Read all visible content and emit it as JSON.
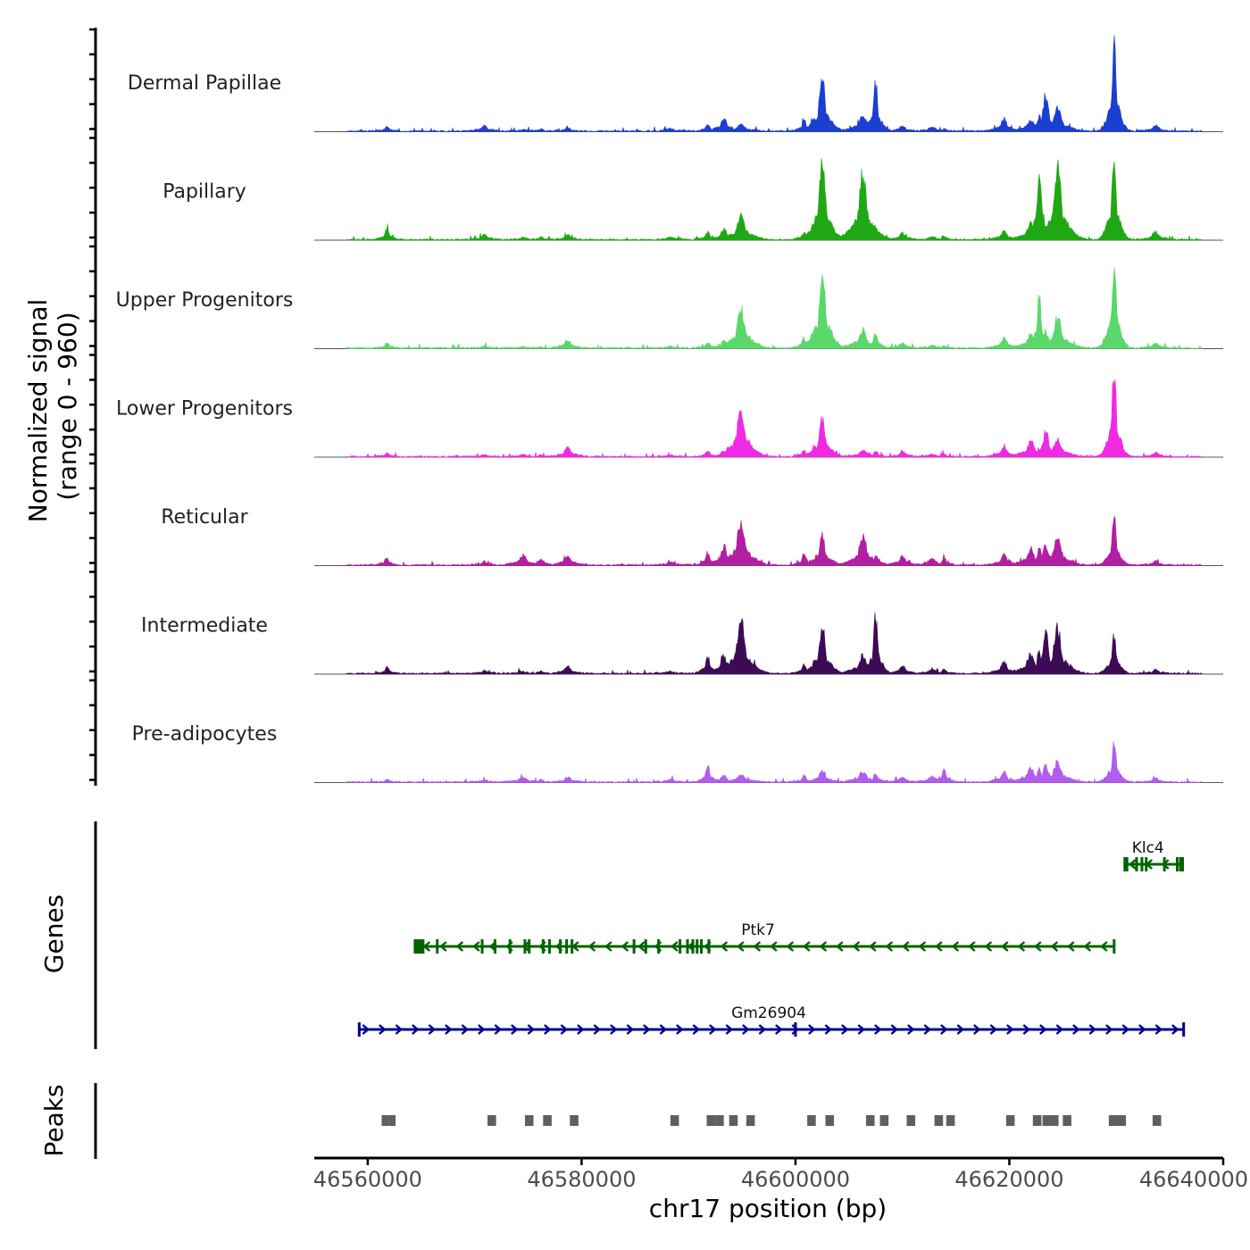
{
  "chart_data": {
    "type": "area",
    "title": "",
    "chromosome": "chr17",
    "xlabel": "chr17 position (bp)",
    "ylabel": "Normalized signal",
    "ylabel_range": "(range 0 - 960)",
    "ylim": [
      0,
      960
    ],
    "xlim": [
      46555000,
      46640000
    ],
    "view_range": [
      46558000,
      46638000
    ],
    "x_ticks": [
      46560000,
      46580000,
      46600000,
      46620000,
      46640000
    ],
    "x_tick_labels": [
      "46560000",
      "46580000",
      "46600000",
      "46620000",
      "46640000"
    ],
    "peak_centers": [
      46561800,
      46570900,
      46574500,
      46576200,
      46578700,
      46588300,
      46591800,
      46593300,
      46594900,
      46600800,
      46602500,
      46606300,
      46607500,
      46610000,
      46612800,
      46613900,
      46619500,
      46622000,
      46622800,
      46623400,
      46624500,
      46629800,
      46633700
    ],
    "series": [
      {
        "name": "Dermal Papillae",
        "color": "#1a3fd1",
        "values": [
          45,
          60,
          15,
          18,
          30,
          25,
          75,
          145,
          70,
          115,
          560,
          180,
          500,
          50,
          40,
          20,
          130,
          110,
          160,
          380,
          250,
          910,
          60
        ]
      },
      {
        "name": "Papillary",
        "color": "#20a814",
        "values": [
          120,
          50,
          20,
          28,
          45,
          22,
          80,
          110,
          250,
          80,
          900,
          720,
          60,
          70,
          30,
          30,
          90,
          170,
          770,
          120,
          750,
          960,
          80
        ]
      },
      {
        "name": "Upper Progenitors",
        "color": "#5ad86a",
        "values": [
          60,
          20,
          15,
          15,
          90,
          15,
          55,
          70,
          420,
          110,
          860,
          200,
          160,
          50,
          25,
          25,
          110,
          150,
          540,
          170,
          310,
          960,
          50
        ]
      },
      {
        "name": "Lower Progenitors",
        "color": "#f02ae2",
        "values": [
          35,
          20,
          15,
          15,
          100,
          15,
          60,
          60,
          500,
          60,
          390,
          60,
          60,
          50,
          20,
          20,
          110,
          160,
          90,
          270,
          180,
          960,
          40
        ]
      },
      {
        "name": "Reticular",
        "color": "#b21fa2",
        "values": [
          70,
          30,
          100,
          60,
          110,
          30,
          130,
          200,
          480,
          110,
          300,
          300,
          100,
          100,
          60,
          70,
          110,
          170,
          180,
          210,
          290,
          500,
          40
        ]
      },
      {
        "name": "Intermediate",
        "color": "#3d0a55",
        "values": [
          60,
          30,
          20,
          25,
          80,
          20,
          180,
          190,
          610,
          95,
          510,
          190,
          600,
          80,
          40,
          40,
          130,
          210,
          250,
          420,
          480,
          410,
          40
        ]
      },
      {
        "name": "Pre-adipocytes",
        "color": "#b25cf0",
        "values": [
          25,
          20,
          45,
          25,
          55,
          25,
          170,
          70,
          80,
          60,
          120,
          110,
          90,
          50,
          60,
          130,
          100,
          140,
          160,
          180,
          210,
          420,
          40
        ]
      }
    ],
    "genes_track": {
      "title": "Genes",
      "genes": [
        {
          "name": "Klc4",
          "color": "#006400",
          "start": 46630800,
          "end": 46636300,
          "strand": "-",
          "exons": [
            46630800,
            46631000,
            46631900,
            46632400,
            46632800,
            46634500,
            46635700,
            46636000,
            46636200
          ],
          "row": 1
        },
        {
          "name": "Ptk7",
          "color": "#006400",
          "start": 46564800,
          "end": 46629800,
          "strand": "-",
          "exons": [
            46564800,
            46566500,
            46570700,
            46571900,
            46573300,
            46574700,
            46575100,
            46576400,
            46577000,
            46578000,
            46578600,
            46579100,
            46584900,
            46586000,
            46587200,
            46589200,
            46589900,
            46590400,
            46590800,
            46591200,
            46591900,
            46629800
          ],
          "row": 2
        },
        {
          "name": "Gm26904",
          "color": "#00008b",
          "start": 46559200,
          "end": 46636300,
          "strand": "+",
          "exons": [
            46559200,
            46600000,
            46636300
          ],
          "row": 3
        }
      ]
    },
    "peaks_track": {
      "title": "Peaks",
      "color": "#5f5f5f",
      "peaks": [
        [
          46561300,
          46562000
        ],
        [
          46562000,
          46562600
        ],
        [
          46571200,
          46572000
        ],
        [
          46574700,
          46575500
        ],
        [
          46576400,
          46577200
        ],
        [
          46578900,
          46579700
        ],
        [
          46588300,
          46589100
        ],
        [
          46591700,
          46592500
        ],
        [
          46592500,
          46593300
        ],
        [
          46593800,
          46594600
        ],
        [
          46595400,
          46596200
        ],
        [
          46601100,
          46601900
        ],
        [
          46602800,
          46603600
        ],
        [
          46606600,
          46607400
        ],
        [
          46607900,
          46608700
        ],
        [
          46610400,
          46611200
        ],
        [
          46613000,
          46613800
        ],
        [
          46614100,
          46614900
        ],
        [
          46619700,
          46620500
        ],
        [
          46622200,
          46623000
        ],
        [
          46623100,
          46623900
        ],
        [
          46623800,
          46624600
        ],
        [
          46625000,
          46625800
        ],
        [
          46629300,
          46630100
        ],
        [
          46630100,
          46630900
        ],
        [
          46633400,
          46634200
        ]
      ]
    }
  }
}
